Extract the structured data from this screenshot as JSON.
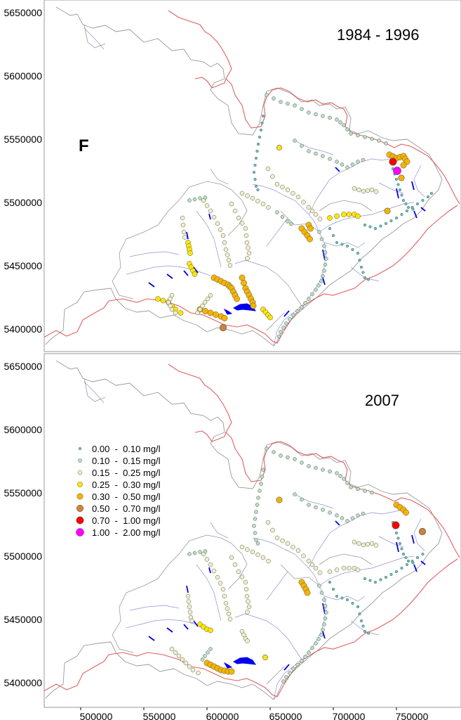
{
  "figure": {
    "panel_label": "F",
    "y_ticks": [
      "5650000",
      "5600000",
      "5550000",
      "5500000",
      "5450000",
      "5400000"
    ],
    "x_ticks": [
      "500000",
      "550000",
      "600000",
      "650000",
      "700000",
      "750000"
    ]
  },
  "panels": [
    {
      "title": "1984 - 1996"
    },
    {
      "title": "2007"
    }
  ],
  "legend": {
    "items": [
      {
        "label": "0.00  -  0.10 mg/l",
        "color": "#5fc8c0"
      },
      {
        "label": "0.10  -  0.15 mg/l",
        "color": "#b8e0c4"
      },
      {
        "label": "0.15  -  0.25 mg/l",
        "color": "#f0f0c8"
      },
      {
        "label": "0.25  -  0.30 mg/l",
        "color": "#ffe600"
      },
      {
        "label": "0.30  -  0.50 mg/l",
        "color": "#f4b400"
      },
      {
        "label": "0.50  -  0.70 mg/l",
        "color": "#c8843a"
      },
      {
        "label": "0.70  -  1.00 mg/l",
        "color": "#ff0000"
      },
      {
        "label": "1.00  -  2.00 mg/l",
        "color": "#ff00ff"
      }
    ]
  },
  "colors": {
    "border_red": "#e06060",
    "basin_gray": "#9a9a9a",
    "river_blue": "#8080c8",
    "lake_blue": "#0000ee"
  }
}
